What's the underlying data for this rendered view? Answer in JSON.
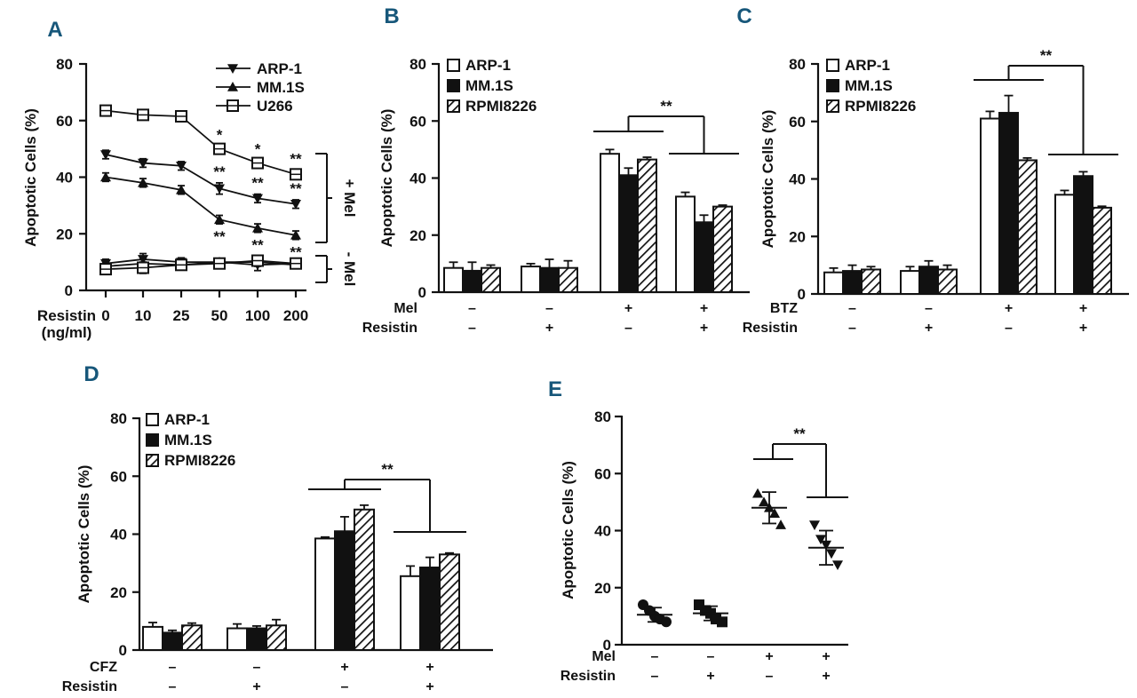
{
  "figure": {
    "panel_letters": [
      "A",
      "B",
      "C",
      "D",
      "E"
    ],
    "bracket_labels": {
      "plus_mel": "+ Mel",
      "minus_mel": "- Mel"
    }
  },
  "chart_data": [
    {
      "id": "A",
      "type": "line",
      "ylabel": "Apoptotic Cells (%)",
      "ylim": [
        0,
        80
      ],
      "yticks": [
        "0",
        "20",
        "40",
        "60",
        "80"
      ],
      "xlabel_lines": [
        "Resistin",
        "(ng/ml)"
      ],
      "categories": [
        "0",
        "10",
        "25",
        "50",
        "100",
        "200"
      ],
      "series": [
        {
          "name": "ARP-1",
          "marker": "triangle-down",
          "group": "+ Mel",
          "values": [
            48,
            45,
            44,
            36,
            32.5,
            30.5
          ],
          "errors": [
            1.5,
            1.5,
            1.5,
            2,
            1.5,
            1.5
          ],
          "sig": [
            "",
            "",
            "",
            "**",
            "**",
            "**"
          ]
        },
        {
          "name": "MM.1S",
          "marker": "triangle-up",
          "group": "+ Mel",
          "values": [
            40,
            38,
            35.5,
            25,
            22,
            19.5
          ],
          "errors": [
            1.5,
            1.5,
            1.5,
            1.5,
            1.5,
            1.5
          ],
          "sig": [
            "",
            "",
            "",
            "**",
            "**",
            "**"
          ]
        },
        {
          "name": "U266",
          "marker": "open-square",
          "group": "+ Mel",
          "values": [
            63.5,
            62,
            61.5,
            50,
            45,
            41
          ],
          "errors": [
            1,
            1,
            1,
            1,
            1,
            1.5
          ],
          "sig": [
            "",
            "",
            "",
            "*",
            "*",
            "**"
          ]
        },
        {
          "name": "ARP-1",
          "marker": "triangle-down",
          "group": "- Mel",
          "values": [
            9.5,
            11,
            10,
            10,
            9,
            9.5
          ],
          "errors": [
            1.5,
            2,
            1.5,
            1,
            2,
            1
          ],
          "sig": []
        },
        {
          "name": "MM.1S",
          "marker": "triangle-up",
          "group": "- Mel",
          "values": [
            8.5,
            9.5,
            9,
            10,
            10,
            9
          ],
          "errors": [
            1.5,
            2,
            1.5,
            1,
            1.5,
            1
          ],
          "sig": []
        },
        {
          "name": "U266",
          "marker": "open-square",
          "group": "- Mel",
          "values": [
            7.5,
            8,
            9,
            9.5,
            10.5,
            9.5
          ],
          "errors": [
            1.5,
            2,
            1.5,
            1,
            1.5,
            1
          ],
          "sig": []
        }
      ],
      "legend": [
        "ARP-1",
        "MM.1S",
        "U266"
      ]
    },
    {
      "id": "B",
      "type": "bar",
      "ylabel": "Apoptotic Cells (%)",
      "ylim": [
        0,
        80
      ],
      "yticks": [
        "0",
        "20",
        "40",
        "60",
        "80"
      ],
      "series_names": [
        "ARP-1",
        "MM.1S",
        "RPMI8226"
      ],
      "condition_rows": [
        {
          "label": "Mel",
          "signs": [
            "–",
            "–",
            "+",
            "+"
          ]
        },
        {
          "label": "Resistin",
          "signs": [
            "–",
            "+",
            "–",
            "+"
          ]
        }
      ],
      "values": [
        [
          8.5,
          7.5,
          8.5
        ],
        [
          9,
          8.5,
          8.5
        ],
        [
          48.5,
          41,
          46.5
        ],
        [
          33.5,
          24.5,
          30
        ]
      ],
      "errors": [
        [
          2,
          3,
          1
        ],
        [
          1,
          3,
          2.5
        ],
        [
          1.5,
          2.5,
          0.8
        ],
        [
          1.5,
          2.5,
          0.5
        ]
      ],
      "significance": {
        "label": "**",
        "between": [
          2,
          3
        ]
      }
    },
    {
      "id": "C",
      "type": "bar",
      "ylabel": "Apoptotic Cells (%)",
      "ylim": [
        0,
        80
      ],
      "yticks": [
        "0",
        "20",
        "40",
        "60",
        "80"
      ],
      "series_names": [
        "ARP-1",
        "MM.1S",
        "RPMI8226"
      ],
      "condition_rows": [
        {
          "label": "BTZ",
          "signs": [
            "–",
            "–",
            "+",
            "+"
          ]
        },
        {
          "label": "Resistin",
          "signs": [
            "–",
            "+",
            "–",
            "+"
          ]
        }
      ],
      "values": [
        [
          7.5,
          8,
          8.5
        ],
        [
          8,
          9.5,
          8.5
        ],
        [
          61,
          63,
          46.5
        ],
        [
          34.5,
          41,
          30
        ]
      ],
      "errors": [
        [
          1.5,
          2,
          1
        ],
        [
          1.5,
          2,
          1.5
        ],
        [
          2.5,
          6,
          0.8
        ],
        [
          1.5,
          1.5,
          0.5
        ]
      ],
      "significance": {
        "label": "**",
        "between": [
          2,
          3
        ]
      }
    },
    {
      "id": "D",
      "type": "bar",
      "ylabel": "Apoptotic Cells (%)",
      "ylim": [
        0,
        80
      ],
      "yticks": [
        "0",
        "20",
        "40",
        "60",
        "80"
      ],
      "series_names": [
        "ARP-1",
        "MM.1S",
        "RPMI8226"
      ],
      "condition_rows": [
        {
          "label": "CFZ",
          "signs": [
            "–",
            "–",
            "+",
            "+"
          ]
        },
        {
          "label": "Resistin",
          "signs": [
            "–",
            "+",
            "–",
            "+"
          ]
        }
      ],
      "values": [
        [
          8,
          6,
          8.5
        ],
        [
          7.5,
          7.5,
          8.5
        ],
        [
          38.5,
          41,
          48.5
        ],
        [
          25.5,
          28.5,
          33
        ]
      ],
      "errors": [
        [
          1.5,
          0.8,
          0.8
        ],
        [
          1.5,
          0.8,
          2
        ],
        [
          0.5,
          5,
          1.5
        ],
        [
          3.5,
          3.5,
          0.5
        ]
      ],
      "significance": {
        "label": "**",
        "between": [
          2,
          3
        ]
      }
    },
    {
      "id": "E",
      "type": "scatter",
      "ylabel": "Apoptotic Cells (%)",
      "ylim": [
        0,
        80
      ],
      "yticks": [
        "0",
        "20",
        "40",
        "60",
        "80"
      ],
      "condition_rows": [
        {
          "label": "Mel",
          "signs": [
            "–",
            "–",
            "+",
            "+"
          ]
        },
        {
          "label": "Resistin",
          "signs": [
            "–",
            "+",
            "–",
            "+"
          ]
        }
      ],
      "groups": [
        {
          "marker": "circle",
          "points": [
            14,
            12,
            10,
            9,
            8
          ],
          "mean": 10.5,
          "sd": 2.5
        },
        {
          "marker": "square",
          "points": [
            14,
            12,
            11,
            9,
            8
          ],
          "mean": 11,
          "sd": 2.5
        },
        {
          "marker": "triangle-up",
          "points": [
            53,
            50,
            48,
            46,
            42
          ],
          "mean": 48,
          "sd": 5.5
        },
        {
          "marker": "triangle-down",
          "points": [
            42,
            37,
            35,
            32,
            28
          ],
          "mean": 34,
          "sd": 6
        }
      ],
      "significance": {
        "label": "**",
        "between": [
          2,
          3
        ]
      }
    }
  ]
}
